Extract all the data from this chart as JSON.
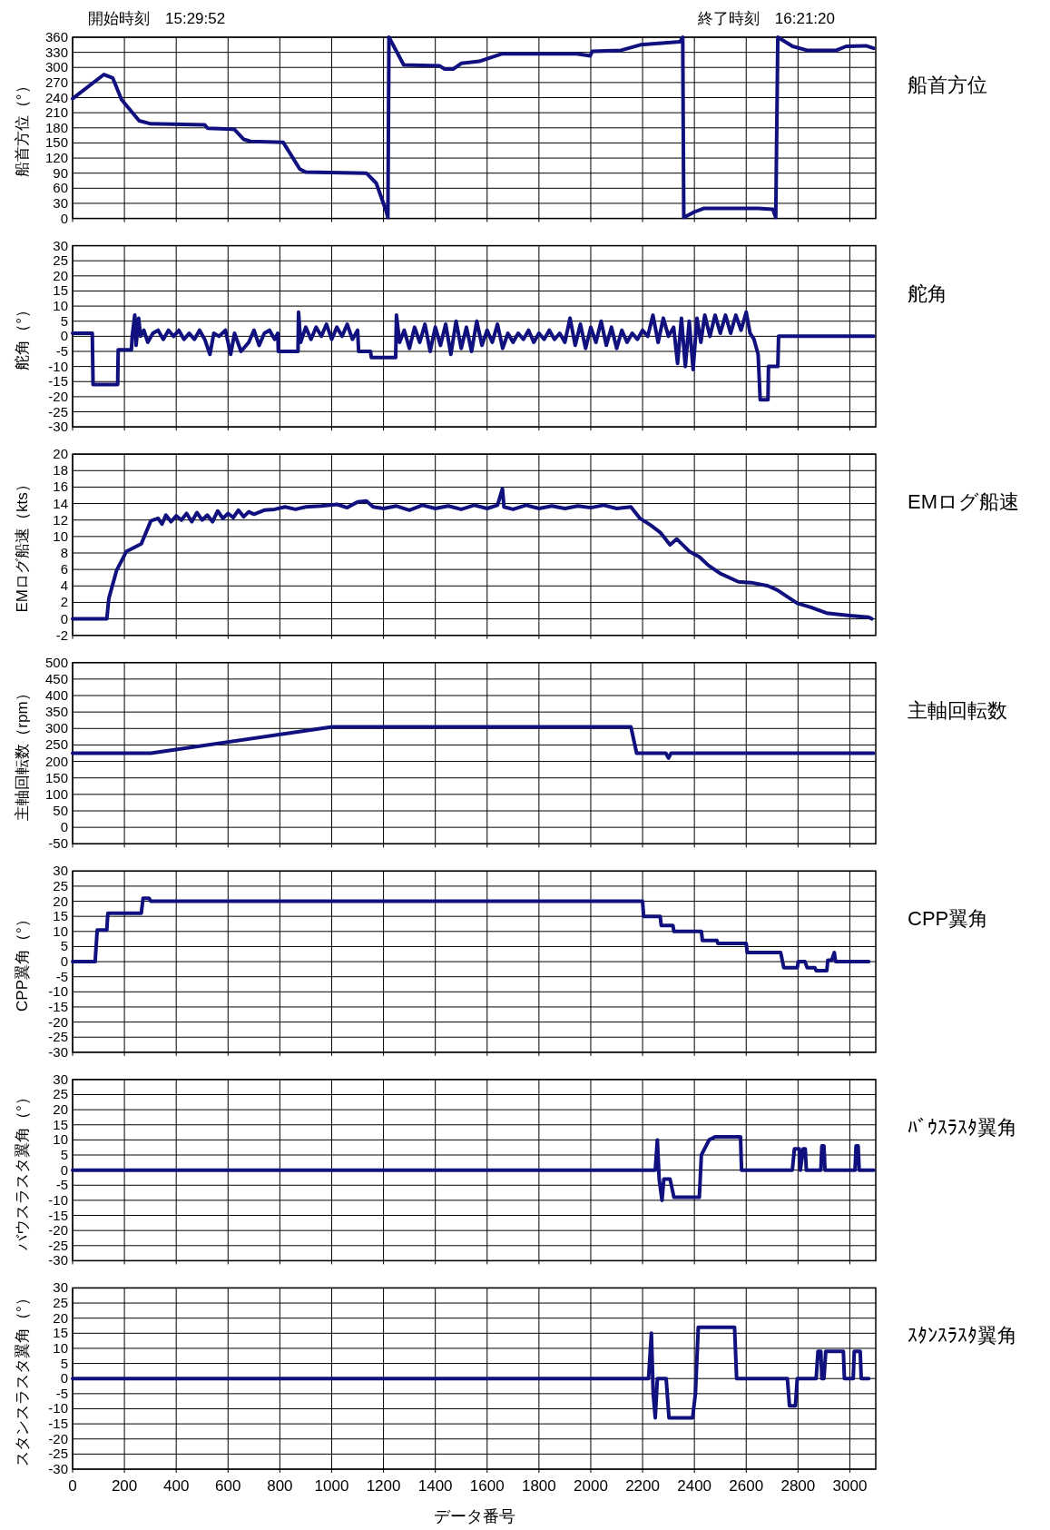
{
  "chart_data": [
    {
      "type": "line",
      "ylabel": "船首方位（°）",
      "annotations": [
        "開始時刻　15:29:52",
        "終了時刻　16:21:20",
        "船首方位"
      ],
      "xlim": [
        0,
        3100
      ],
      "xticks": [
        0,
        200,
        400,
        600,
        800,
        1000,
        1200,
        1400,
        1600,
        1800,
        2000,
        2200,
        2400,
        2600,
        2800,
        3000
      ],
      "ylim": [
        0,
        360
      ],
      "yticks": [
        0,
        30,
        60,
        90,
        120,
        150,
        180,
        210,
        240,
        270,
        300,
        330,
        360
      ],
      "grid": true,
      "tick_labels": "y",
      "series": [
        {
          "color": "#10107f",
          "x": [
            0,
            121,
            155,
            189,
            257,
            302,
            510,
            521,
            624,
            661,
            687,
            813,
            877,
            900,
            1134,
            1172,
            1210,
            1217,
            1221,
            1278,
            1417,
            1436,
            1470,
            1500,
            1569,
            1656,
            1946,
            1998,
            2006,
            2117,
            2192,
            2344,
            2355,
            2359,
            2400,
            2438,
            2646,
            2703,
            2714,
            2722,
            2779,
            2835,
            2948,
            2986,
            3062,
            3092
          ],
          "values": [
            238,
            286,
            279,
            236,
            194,
            188,
            186,
            179,
            177,
            157,
            153,
            151,
            98,
            92,
            90,
            70,
            15,
            2,
            360,
            305,
            303,
            297,
            297,
            308,
            312,
            327,
            327,
            323,
            332,
            334,
            345,
            351,
            360,
            2,
            13,
            20,
            20,
            18,
            2,
            360,
            342,
            334,
            334,
            342,
            343,
            338
          ]
        }
      ]
    },
    {
      "type": "line",
      "annotations": [
        "舵角"
      ],
      "ylabel": "舵角（°）",
      "xlim": [
        0,
        3100
      ],
      "xticks": [
        0,
        200,
        400,
        600,
        800,
        1000,
        1200,
        1400,
        1600,
        1800,
        2000,
        2200,
        2400,
        2600,
        2800,
        3000
      ],
      "ylim": [
        -30,
        30
      ],
      "yticks": [
        -30,
        -25,
        -20,
        -15,
        -10,
        -5,
        0,
        5,
        10,
        15,
        20,
        25,
        30
      ],
      "grid": true,
      "tick_labels": "y",
      "series": [
        {
          "color": "#10107f",
          "x": [
            0,
            76,
            79,
            174,
            176,
            227,
            230,
            240,
            245,
            255,
            262,
            275,
            290,
            310,
            330,
            350,
            370,
            390,
            410,
            430,
            450,
            470,
            490,
            510,
            530,
            545,
            565,
            590,
            610,
            625,
            650,
            680,
            700,
            720,
            740,
            760,
            780,
            792,
            794,
            870,
            872,
            880,
            900,
            920,
            940,
            960,
            980,
            1000,
            1020,
            1040,
            1060,
            1080,
            1100,
            1104,
            1150,
            1153,
            1247,
            1250,
            1262,
            1280,
            1300,
            1320,
            1340,
            1360,
            1380,
            1400,
            1420,
            1440,
            1460,
            1480,
            1500,
            1520,
            1540,
            1560,
            1580,
            1600,
            1620,
            1640,
            1660,
            1680,
            1700,
            1720,
            1740,
            1760,
            1780,
            1800,
            1820,
            1840,
            1860,
            1880,
            1900,
            1920,
            1940,
            1960,
            1980,
            2000,
            2020,
            2040,
            2060,
            2080,
            2100,
            2120,
            2140,
            2160,
            2180,
            2200,
            2220,
            2240,
            2260,
            2280,
            2300,
            2320,
            2335,
            2350,
            2365,
            2380,
            2395,
            2410,
            2425,
            2440,
            2460,
            2480,
            2500,
            2520,
            2540,
            2560,
            2580,
            2600,
            2615,
            2630,
            2646,
            2654,
            2684,
            2686,
            2722,
            2725,
            3092
          ],
          "values": [
            1,
            1,
            -16,
            -16,
            -4.5,
            -4.5,
            0,
            7,
            -3,
            6,
            0,
            2,
            -2,
            1,
            2,
            -1,
            2,
            0,
            2,
            -1,
            1,
            -1,
            2,
            -1,
            -6,
            1,
            0,
            2,
            -6,
            1,
            -5,
            -2,
            2,
            -3,
            1,
            2,
            -1,
            1,
            -5,
            -5,
            8,
            -2,
            3,
            -1,
            3,
            0,
            4,
            -1,
            3,
            0,
            4,
            -1,
            2,
            -5,
            -5,
            -7,
            -7,
            7,
            -2,
            2,
            -4,
            3,
            -2,
            4,
            -5,
            3,
            -3,
            4,
            -6,
            5,
            -4,
            3,
            -5,
            5,
            -3,
            2,
            -2,
            4,
            -4,
            1,
            -2,
            1,
            -1,
            2,
            -2,
            1,
            -1,
            2,
            -1,
            1,
            -2,
            6,
            -3,
            4,
            -4,
            3,
            -2,
            5,
            -3,
            3,
            -4,
            2,
            -2,
            1,
            -1,
            2,
            0,
            7,
            -2,
            6,
            0,
            3,
            -9,
            6,
            -10,
            5,
            -11,
            6,
            -2,
            7,
            0,
            7,
            1,
            7,
            1,
            7,
            2,
            8,
            1,
            -1,
            -6,
            -21,
            -21,
            -10,
            -10,
            0,
            0
          ]
        }
      ]
    },
    {
      "type": "line",
      "annotations": [
        "EMログ船速"
      ],
      "ylabel": "EMログ船速（kts）",
      "xlim": [
        0,
        3100
      ],
      "xticks": [
        0,
        200,
        400,
        600,
        800,
        1000,
        1200,
        1400,
        1600,
        1800,
        2000,
        2200,
        2400,
        2600,
        2800,
        3000
      ],
      "ylim": [
        -2,
        20
      ],
      "yticks": [
        -2,
        0,
        2,
        4,
        6,
        8,
        10,
        12,
        14,
        16,
        18,
        20
      ],
      "grid": true,
      "tick_labels": "y",
      "series": [
        {
          "color": "#10107f",
          "x": [
            0,
            132,
            140,
            170,
            208,
            265,
            302,
            330,
            345,
            360,
            380,
            400,
            420,
            440,
            460,
            480,
            500,
            520,
            540,
            560,
            580,
            600,
            620,
            640,
            660,
            680,
            700,
            740,
            780,
            820,
            860,
            900,
            960,
            1021,
            1060,
            1100,
            1134,
            1160,
            1200,
            1250,
            1300,
            1350,
            1400,
            1450,
            1500,
            1550,
            1600,
            1640,
            1659,
            1665,
            1700,
            1750,
            1800,
            1850,
            1900,
            1950,
            2000,
            2050,
            2100,
            2155,
            2190,
            2230,
            2268,
            2306,
            2332,
            2380,
            2420,
            2454,
            2500,
            2570,
            2620,
            2684,
            2720,
            2797,
            2850,
            2910,
            3000,
            3073,
            3085
          ],
          "values": [
            0,
            0,
            2.5,
            5.9,
            8.2,
            9.1,
            11.9,
            12.2,
            11.5,
            12.6,
            11.8,
            12.5,
            12,
            12.8,
            11.8,
            12.9,
            12,
            12.6,
            11.8,
            13.1,
            12.2,
            12.8,
            12.3,
            13.2,
            12.4,
            13,
            12.7,
            13.2,
            13.3,
            13.6,
            13.3,
            13.6,
            13.7,
            13.9,
            13.5,
            14.2,
            14.3,
            13.6,
            13.4,
            13.7,
            13.2,
            13.8,
            13.4,
            13.7,
            13.3,
            13.8,
            13.4,
            13.8,
            15.8,
            13.6,
            13.3,
            13.8,
            13.4,
            13.7,
            13.4,
            13.7,
            13.5,
            13.8,
            13.4,
            13.6,
            12.2,
            11.4,
            10.5,
            9,
            9.7,
            8.2,
            7.5,
            6.5,
            5.5,
            4.5,
            4.4,
            4,
            3.5,
            1.9,
            1.4,
            0.7,
            0.4,
            0.2,
            0
          ]
        }
      ]
    },
    {
      "type": "line",
      "annotations": [
        "主軸回転数"
      ],
      "ylabel": "主軸回転数（rpm）",
      "xlim": [
        0,
        3100
      ],
      "xticks": [
        0,
        200,
        400,
        600,
        800,
        1000,
        1200,
        1400,
        1600,
        1800,
        2000,
        2200,
        2400,
        2600,
        2800,
        3000
      ],
      "ylim": [
        -50,
        500
      ],
      "yticks": [
        -50,
        0,
        50,
        100,
        150,
        200,
        250,
        300,
        350,
        400,
        450,
        500
      ],
      "grid": true,
      "tick_labels": "y",
      "series": [
        {
          "color": "#10107f",
          "x": [
            0,
            302,
            1002,
            2155,
            2177,
            2290,
            2300,
            2310,
            3092
          ],
          "values": [
            225,
            225,
            305,
            305,
            225,
            225,
            210,
            225,
            225
          ]
        }
      ]
    },
    {
      "type": "line",
      "annotations": [
        "CPP翼角"
      ],
      "ylabel": "CPP翼角（°）",
      "xlim": [
        0,
        3100
      ],
      "xticks": [
        0,
        200,
        400,
        600,
        800,
        1000,
        1200,
        1400,
        1600,
        1800,
        2000,
        2200,
        2400,
        2600,
        2800,
        3000
      ],
      "ylim": [
        -30,
        30
      ],
      "yticks": [
        -30,
        -25,
        -20,
        -15,
        -10,
        -5,
        0,
        5,
        10,
        15,
        20,
        25,
        30
      ],
      "grid": true,
      "tick_labels": "y",
      "series": [
        {
          "color": "#10107f",
          "x": [
            0,
            87,
            95,
            132,
            136,
            265,
            272,
            295,
            302,
            2200,
            2204,
            2268,
            2272,
            2317,
            2321,
            2427,
            2431,
            2487,
            2491,
            2600,
            2604,
            2733,
            2745,
            2797,
            2801,
            2827,
            2835,
            2865,
            2870,
            2911,
            2915,
            2930,
            2940,
            2945,
            3073
          ],
          "values": [
            0,
            0,
            10.5,
            10.5,
            16,
            16,
            21,
            21,
            20,
            20,
            15,
            15,
            12,
            12,
            10,
            10,
            7,
            7,
            6,
            6,
            3,
            3,
            -2,
            -2,
            0,
            0,
            -2,
            -2,
            -3,
            -3,
            0.5,
            0.5,
            3,
            0,
            0
          ]
        }
      ]
    },
    {
      "type": "line",
      "annotations": [
        "ﾊﾞｳｽﾗｽﾀ翼角"
      ],
      "ylabel": "バウスラスタ翼角（°）",
      "xlim": [
        0,
        3100
      ],
      "xticks": [
        0,
        200,
        400,
        600,
        800,
        1000,
        1200,
        1400,
        1600,
        1800,
        2000,
        2200,
        2400,
        2600,
        2800,
        3000
      ],
      "ylim": [
        -30,
        30
      ],
      "yticks": [
        -30,
        -25,
        -20,
        -15,
        -10,
        -5,
        0,
        5,
        10,
        15,
        20,
        25,
        30
      ],
      "grid": true,
      "tick_labels": "y",
      "series": [
        {
          "color": "#10107f",
          "x": [
            0,
            2249,
            2257,
            2264,
            2275,
            2282,
            2306,
            2321,
            2419,
            2427,
            2457,
            2480,
            2578,
            2582,
            2778,
            2786,
            2805,
            2809,
            2820,
            2828,
            2832,
            2888,
            2892,
            2900,
            2904,
            3020,
            3024,
            3032,
            3036,
            3092
          ],
          "values": [
            0,
            0,
            10,
            -3,
            -10,
            -3,
            -3,
            -9,
            -9,
            5,
            10,
            11,
            11,
            0,
            0,
            7,
            7,
            0,
            7,
            7,
            0,
            0,
            8,
            8,
            0,
            0,
            8,
            8,
            0,
            0
          ]
        }
      ]
    },
    {
      "type": "line",
      "annotations": [
        "ｽﾀﾝｽﾗｽﾀ翼角"
      ],
      "ylabel": "スタンスラスタ翼角（°）",
      "xlabel": "データ番号",
      "xlim": [
        0,
        3100
      ],
      "xticks": [
        0,
        200,
        400,
        600,
        800,
        1000,
        1200,
        1400,
        1600,
        1800,
        2000,
        2200,
        2400,
        2600,
        2800,
        3000
      ],
      "ylim": [
        -30,
        30
      ],
      "yticks": [
        -30,
        -25,
        -20,
        -15,
        -10,
        -5,
        0,
        5,
        10,
        15,
        20,
        25,
        30
      ],
      "grid": true,
      "series": [
        {
          "color": "#10107f",
          "x": [
            0,
            2223,
            2234,
            2241,
            2249,
            2257,
            2291,
            2302,
            2393,
            2404,
            2415,
            2555,
            2563,
            2759,
            2767,
            2790,
            2797,
            2870,
            2877,
            2888,
            2892,
            2900,
            2907,
            2975,
            2979,
            3013,
            3017,
            3040,
            3044,
            3073
          ],
          "values": [
            0,
            0,
            15,
            -5,
            -13,
            0,
            0,
            -13,
            -13,
            -5,
            17,
            17,
            0,
            0,
            -9,
            -9,
            0,
            0,
            9,
            9,
            0,
            0,
            9,
            9,
            0,
            0,
            9,
            9,
            0,
            0
          ]
        }
      ]
    }
  ]
}
